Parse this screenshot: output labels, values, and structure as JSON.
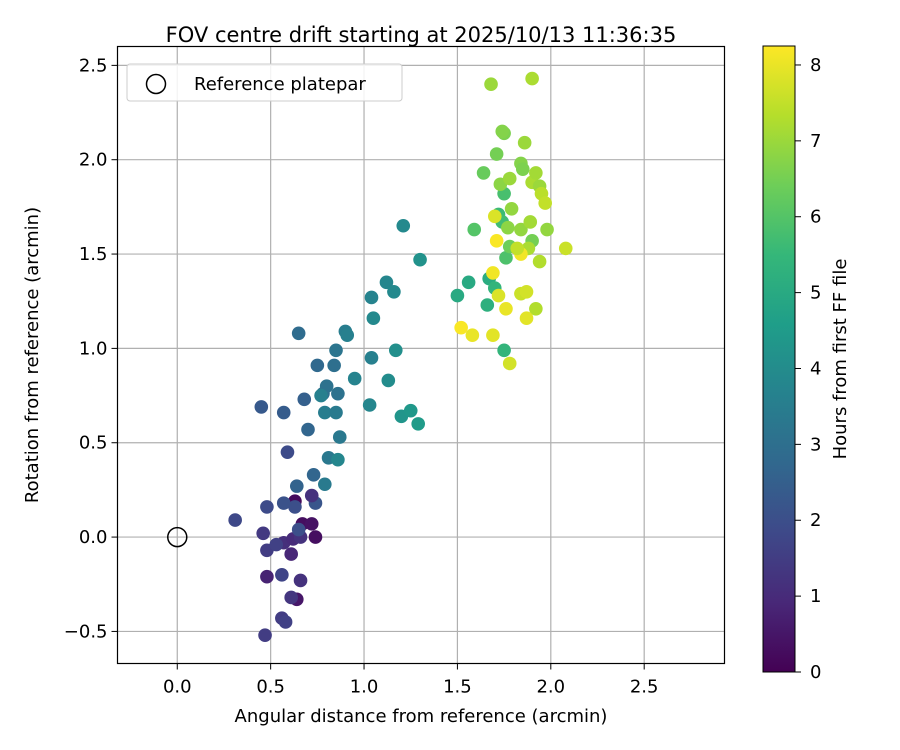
{
  "chart_data": {
    "type": "scatter",
    "title": "FOV centre drift starting at 2025/10/13 11:36:35",
    "xlabel": "Angular distance from reference (arcmin)",
    "ylabel": "Rotation from reference (arcmin)",
    "xlim": [
      -0.32,
      2.93
    ],
    "ylim": [
      -0.67,
      2.6
    ],
    "x_ticks": [
      0.0,
      0.5,
      1.0,
      1.5,
      2.0,
      2.5
    ],
    "x_tick_labels": [
      "0.0",
      "0.5",
      "1.0",
      "1.5",
      "2.0",
      "2.5"
    ],
    "y_ticks": [
      -0.5,
      0.0,
      0.5,
      1.0,
      1.5,
      2.0,
      2.5
    ],
    "y_tick_labels": [
      "−0.5",
      "0.0",
      "0.5",
      "1.0",
      "1.5",
      "2.0",
      "2.5"
    ],
    "grid": true,
    "legend": {
      "position": "top-left",
      "entries": [
        "Reference platepar"
      ]
    },
    "reference_point": {
      "x": 0.0,
      "y": 0.0,
      "label": "Reference platepar"
    },
    "colorbar": {
      "label": "Hours from first FF file",
      "min": 0,
      "max": 8.25,
      "ticks": [
        0,
        1,
        2,
        3,
        4,
        5,
        6,
        7,
        8
      ],
      "tick_labels": [
        "0",
        "1",
        "2",
        "3",
        "4",
        "5",
        "6",
        "7",
        "8"
      ],
      "colormap": [
        "#440154",
        "#482878",
        "#3e4989",
        "#31688e",
        "#26828e",
        "#1f9e89",
        "#35b779",
        "#6ece58",
        "#b5de2b",
        "#fde725"
      ]
    },
    "points": [
      [
        0.63,
        0.19,
        0.2
      ],
      [
        0.67,
        0.07,
        0.3
      ],
      [
        0.72,
        0.07,
        0.4
      ],
      [
        0.74,
        0.0,
        0.3
      ],
      [
        0.64,
        -0.33,
        0.5
      ],
      [
        0.48,
        -0.21,
        0.8
      ],
      [
        0.61,
        -0.09,
        0.9
      ],
      [
        0.57,
        -0.03,
        1.1
      ],
      [
        0.62,
        -0.01,
        1.0
      ],
      [
        0.66,
        0.0,
        1.2
      ],
      [
        0.66,
        -0.23,
        1.2
      ],
      [
        0.61,
        -0.32,
        1.3
      ],
      [
        0.46,
        0.02,
        1.4
      ],
      [
        0.48,
        -0.07,
        1.5
      ],
      [
        0.53,
        -0.04,
        1.6
      ],
      [
        0.56,
        -0.2,
        1.7
      ],
      [
        0.56,
        -0.43,
        1.5
      ],
      [
        0.58,
        -0.45,
        1.6
      ],
      [
        0.47,
        -0.52,
        1.5
      ],
      [
        0.31,
        0.09,
        1.8
      ],
      [
        0.48,
        0.16,
        1.9
      ],
      [
        0.63,
        0.16,
        2.0
      ],
      [
        0.65,
        0.04,
        2.0
      ],
      [
        0.59,
        0.45,
        1.9
      ],
      [
        0.57,
        0.18,
        2.1
      ],
      [
        0.74,
        0.18,
        2.2
      ],
      [
        0.45,
        0.69,
        2.3
      ],
      [
        0.57,
        0.66,
        2.4
      ],
      [
        0.68,
        0.73,
        2.5
      ],
      [
        0.72,
        0.22,
        1.2
      ],
      [
        0.64,
        0.27,
        2.6
      ],
      [
        0.73,
        0.33,
        2.7
      ],
      [
        0.7,
        0.57,
        2.7
      ],
      [
        0.75,
        0.91,
        2.8
      ],
      [
        0.65,
        1.08,
        2.9
      ],
      [
        0.78,
        0.76,
        3.0
      ],
      [
        0.8,
        0.8,
        3.1
      ],
      [
        0.86,
        0.76,
        3.1
      ],
      [
        0.84,
        0.91,
        3.0
      ],
      [
        0.85,
        0.99,
        3.2
      ],
      [
        0.81,
        0.42,
        3.3
      ],
      [
        0.79,
        0.28,
        3.4
      ],
      [
        0.87,
        0.53,
        3.3
      ],
      [
        0.79,
        0.66,
        3.5
      ],
      [
        0.85,
        0.66,
        3.4
      ],
      [
        0.86,
        0.41,
        3.8
      ],
      [
        0.9,
        1.09,
        3.5
      ],
      [
        0.91,
        1.07,
        3.6
      ],
      [
        0.95,
        0.84,
        3.7
      ],
      [
        1.03,
        0.7,
        3.8
      ],
      [
        1.04,
        0.95,
        3.6
      ],
      [
        1.05,
        1.16,
        3.9
      ],
      [
        1.04,
        1.27,
        3.7
      ],
      [
        1.13,
        0.83,
        4.0
      ],
      [
        1.12,
        1.35,
        3.8
      ],
      [
        1.16,
        1.3,
        3.9
      ],
      [
        1.17,
        0.99,
        4.1
      ],
      [
        1.2,
        0.64,
        4.3
      ],
      [
        1.25,
        0.67,
        4.4
      ],
      [
        1.29,
        0.6,
        4.5
      ],
      [
        1.21,
        1.65,
        3.9
      ],
      [
        1.3,
        1.47,
        4.2
      ],
      [
        0.77,
        0.75,
        3.6
      ],
      [
        1.5,
        1.28,
        5.0
      ],
      [
        1.56,
        1.35,
        5.0
      ],
      [
        1.59,
        1.63,
        6.0
      ],
      [
        1.67,
        1.37,
        5.1
      ],
      [
        1.66,
        1.23,
        5.2
      ],
      [
        1.64,
        1.93,
        6.3
      ],
      [
        1.7,
        1.32,
        5.4
      ],
      [
        1.72,
        1.71,
        5.6
      ],
      [
        1.74,
        1.67,
        5.7
      ],
      [
        1.75,
        1.82,
        5.8
      ],
      [
        1.76,
        1.48,
        5.9
      ],
      [
        1.75,
        0.99,
        5.4
      ],
      [
        1.71,
        2.03,
        6.5
      ],
      [
        1.75,
        2.14,
        6.6
      ],
      [
        1.74,
        2.15,
        6.7
      ],
      [
        1.73,
        1.87,
        6.8
      ],
      [
        1.68,
        2.4,
        7.0
      ],
      [
        1.78,
        1.9,
        7.0
      ],
      [
        1.79,
        1.74,
        6.9
      ],
      [
        1.77,
        1.64,
        6.8
      ],
      [
        1.78,
        1.54,
        6.4
      ],
      [
        1.84,
        1.63,
        6.9
      ],
      [
        1.84,
        1.98,
        6.7
      ],
      [
        1.85,
        1.95,
        6.6
      ],
      [
        1.86,
        2.09,
        7.0
      ],
      [
        1.89,
        1.67,
        7.1
      ],
      [
        1.9,
        1.57,
        6.5
      ],
      [
        1.88,
        1.53,
        7.2
      ],
      [
        1.9,
        1.88,
        7.2
      ],
      [
        1.92,
        1.93,
        7.1
      ],
      [
        1.92,
        1.21,
        7.3
      ],
      [
        1.94,
        1.86,
        7.0
      ],
      [
        1.95,
        1.82,
        7.4
      ],
      [
        1.94,
        1.46,
        7.3
      ],
      [
        1.97,
        1.77,
        7.5
      ],
      [
        1.98,
        1.63,
        6.9
      ],
      [
        1.9,
        2.43,
        7.2
      ],
      [
        2.08,
        1.53,
        7.6
      ],
      [
        1.84,
        1.29,
        7.6
      ],
      [
        1.87,
        1.3,
        7.7
      ],
      [
        1.72,
        1.28,
        7.8
      ],
      [
        1.78,
        0.92,
        7.7
      ],
      [
        1.69,
        1.07,
        7.9
      ],
      [
        1.58,
        1.07,
        8.0
      ],
      [
        1.52,
        1.11,
        8.2
      ],
      [
        1.69,
        1.4,
        8.1
      ],
      [
        1.71,
        1.57,
        8.2
      ],
      [
        1.76,
        1.21,
        8.0
      ],
      [
        1.84,
        1.5,
        8.1
      ],
      [
        1.87,
        1.16,
        7.9
      ],
      [
        1.7,
        1.7,
        7.8
      ],
      [
        1.82,
        1.53,
        7.5
      ]
    ]
  }
}
